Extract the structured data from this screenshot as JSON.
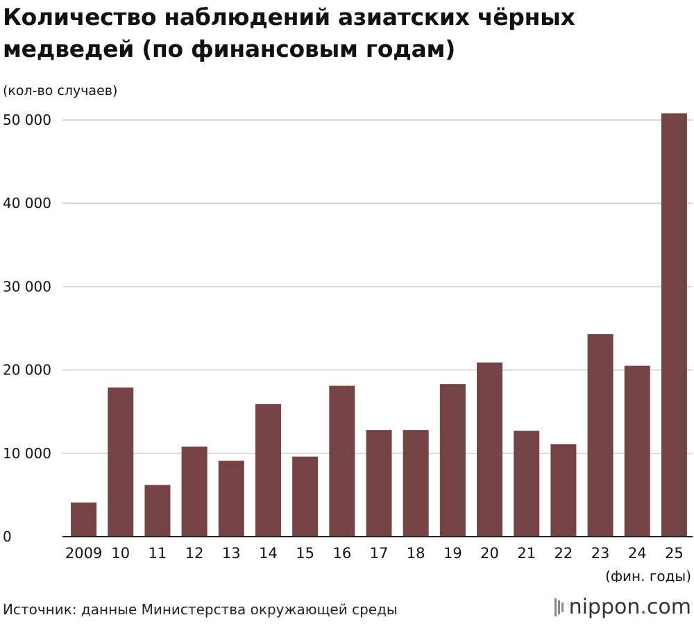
{
  "title_line1": "Количество наблюдений азиатских чёрных",
  "title_line2": "медведей (по финансовым годам)",
  "units_label": "(кол-во случаев)",
  "xlabel": "(фин. годы)",
  "source": "Источник: данные Министерства окружающей среды",
  "logo": {
    "name": "nippon",
    "dot": ".",
    "tld": "com"
  },
  "colors": {
    "bar": "#734345",
    "grid": "#cccccc",
    "axis": "#222222"
  },
  "chart_data": {
    "type": "bar",
    "title": "Количество наблюдений азиатских чёрных медведей (по финансовым годам)",
    "ylabel": "(кол-во случаев)",
    "xlabel": "(фин. годы)",
    "categories": [
      "2009",
      "10",
      "11",
      "12",
      "13",
      "14",
      "15",
      "16",
      "17",
      "18",
      "19",
      "20",
      "21",
      "22",
      "23",
      "24",
      "25"
    ],
    "values": [
      4100,
      17900,
      6200,
      10800,
      9100,
      15900,
      9600,
      18100,
      12800,
      12800,
      18300,
      20900,
      12700,
      11100,
      24300,
      20500,
      50800
    ],
    "ylim": [
      0,
      50000
    ],
    "yticks": [
      0,
      10000,
      20000,
      30000,
      40000,
      50000
    ],
    "ytick_labels": [
      "0",
      "10 000",
      "20 000",
      "30 000",
      "40 000",
      "50 000"
    ],
    "grid": true,
    "legend": "none"
  }
}
